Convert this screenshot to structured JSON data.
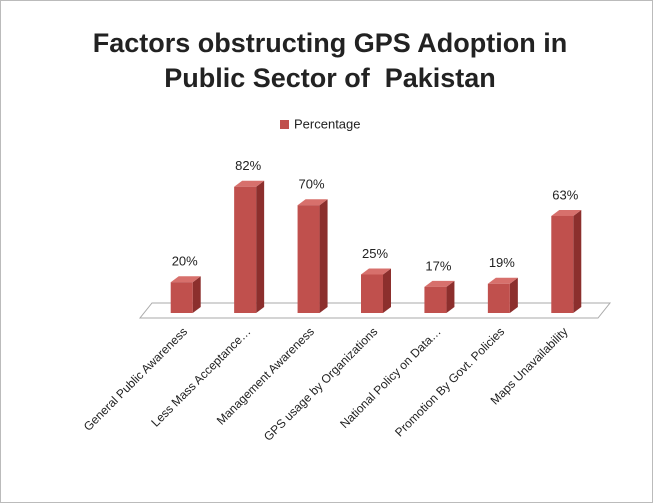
{
  "chart_data": {
    "type": "bar3d",
    "title": [
      "Factors obstructing GPS Adoption in",
      "Public Sector of  Pakistan"
    ],
    "categories": [
      "General Public Awareness",
      "Less Mass Acceptance…",
      "Management Awareness",
      "GPS usage by Organizations",
      "National Policy on Data…",
      "Promotion By Govt. Policies",
      "Maps Unavailability"
    ],
    "series": [
      {
        "name": "Percentage",
        "color": "#c0504d",
        "values": [
          20,
          82,
          70,
          25,
          17,
          19,
          63
        ],
        "value_labels": [
          "20%",
          "82%",
          "70%",
          "25%",
          "17%",
          "19%",
          "63%"
        ]
      }
    ],
    "ylim": [
      0,
      100
    ],
    "legend": "top"
  }
}
